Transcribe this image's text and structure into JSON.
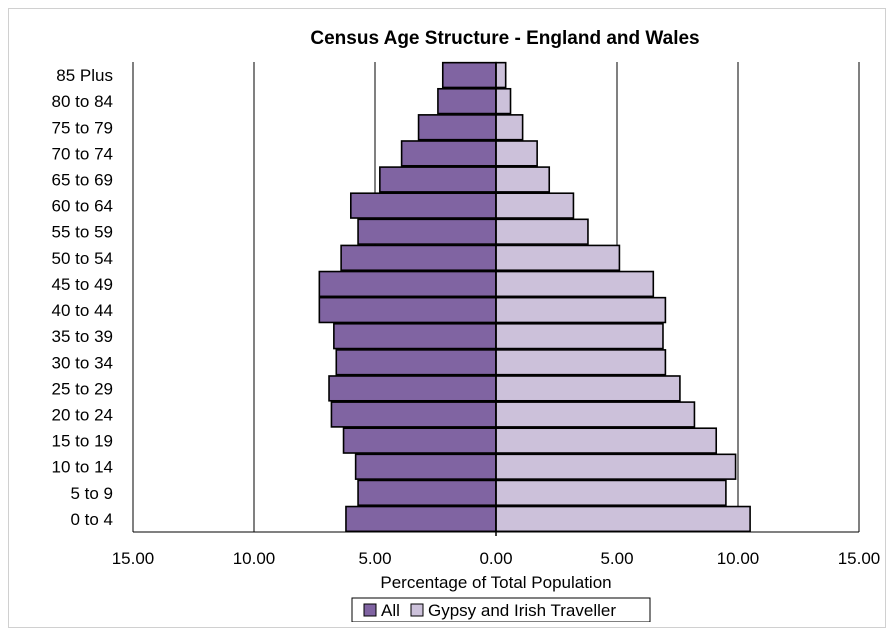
{
  "chart_data": {
    "type": "bar",
    "orientation": "horizontal-pyramid",
    "title": "Census Age Structure - England and Wales",
    "xlabel": "Percentage of Total Population",
    "ylabel": "",
    "xlim": [
      -15,
      15
    ],
    "x_ticks": [
      -15,
      -10,
      -5,
      0,
      5,
      10,
      15
    ],
    "x_tick_labels": [
      "15.00",
      "10.00",
      "5.00",
      "0.00",
      "5.00",
      "10.00",
      "15.00"
    ],
    "grid": "vertical",
    "legend_position": "bottom",
    "categories": [
      "0 to 4",
      "5 to 9",
      "10 to 14",
      "15 to 19",
      "20 to 24",
      "25 to 29",
      "30 to 34",
      "35 to 39",
      "40 to 44",
      "45 to 49",
      "50 to 54",
      "55 to 59",
      "60 to 64",
      "65 to 69",
      "70 to 74",
      "75 to 79",
      "80 to 84",
      "85 Plus"
    ],
    "series": [
      {
        "name": "All",
        "side": "left",
        "color": "#8064a2",
        "values": [
          6.2,
          5.7,
          5.8,
          6.3,
          6.8,
          6.9,
          6.6,
          6.7,
          7.3,
          7.3,
          6.4,
          5.7,
          6.0,
          4.8,
          3.9,
          3.2,
          2.4,
          2.2
        ]
      },
      {
        "name": "Gypsy and Irish Traveller",
        "side": "right",
        "color": "#ccc1da",
        "values": [
          10.5,
          9.5,
          9.9,
          9.1,
          8.2,
          7.6,
          7.0,
          6.9,
          7.0,
          6.5,
          5.1,
          3.8,
          3.2,
          2.2,
          1.7,
          1.1,
          0.6,
          0.4
        ]
      }
    ]
  }
}
